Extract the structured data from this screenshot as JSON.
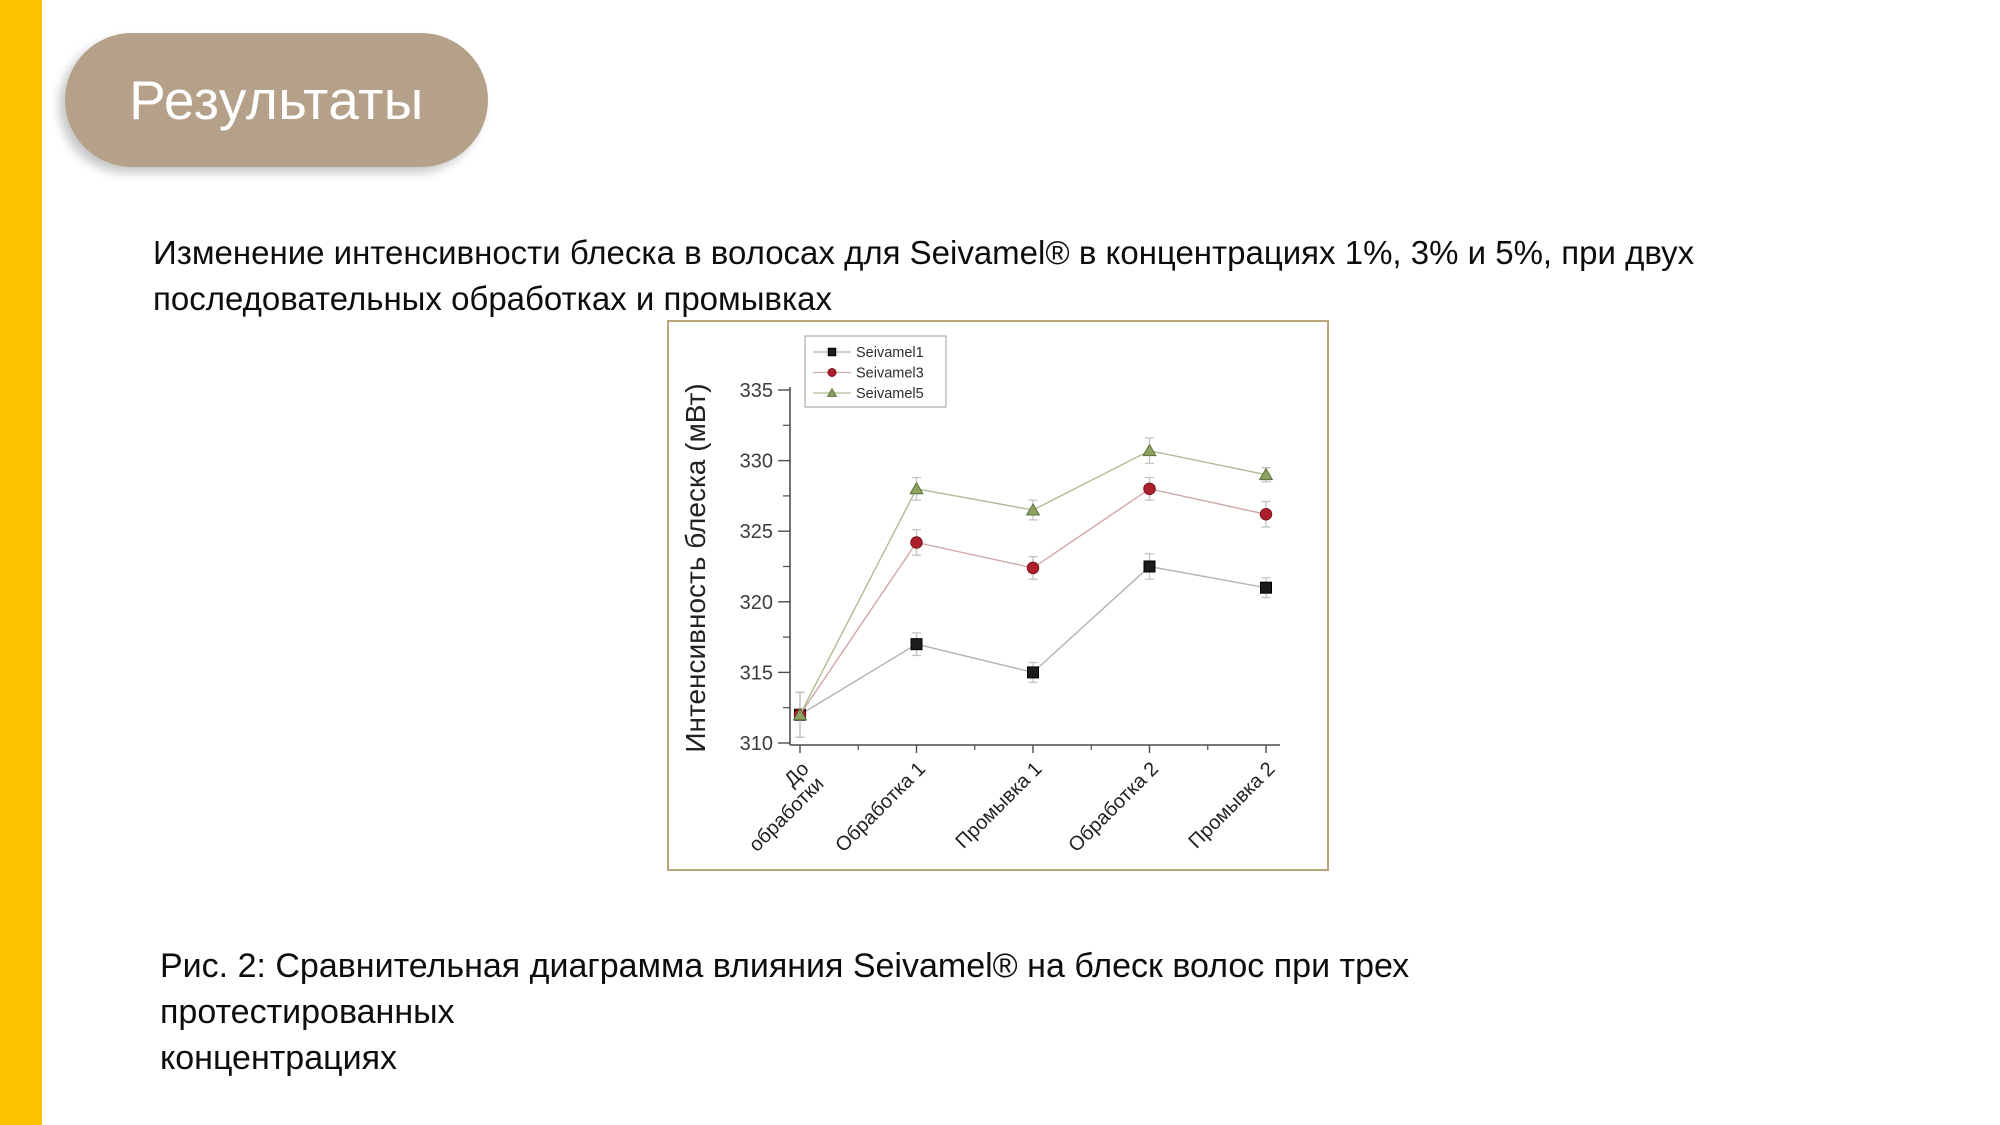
{
  "slide": {
    "title": "Результаты",
    "intro_text": "Изменение интенсивности блеска в волосах для Seivamel®  в концентрациях 1%, 3% и 5%, при двух\nпоследовательных обработках и промывках",
    "caption": "Рис. 2: Сравнительная диаграмма влияния Seivamel® на блеск волос при трех протестированных\nконцентрациях"
  },
  "colors": {
    "accent_bar": "#FFC200",
    "title_pill": "#B5A189",
    "title_text": "#FFFFFF",
    "chart_frame_border": "#B8A67A",
    "axis": "#4D4D4D",
    "tick_label": "#3C3C3C",
    "error_bar": "#C4C4C4",
    "legend_border": "#9C9C9C"
  },
  "chart_data": {
    "type": "line",
    "title": "",
    "xlabel": "",
    "ylabel": "Интенсивность блеска (мВт)",
    "ylim": [
      310,
      335
    ],
    "yticks": [
      310,
      315,
      320,
      325,
      330,
      335
    ],
    "y_minor_step": 2.5,
    "grid": false,
    "legend_position": "top-left-inside",
    "categories": [
      "До\nобработки",
      "Обработка 1",
      "Промывка 1",
      "Обработка 2",
      "Промывка 2"
    ],
    "series": [
      {
        "name": "Seivamel1",
        "marker": "square",
        "color": "#1C1C1C",
        "edge_color": "#000000",
        "line_color": "#B3B3B3",
        "values": [
          312,
          317,
          315,
          322.5,
          321
        ],
        "errors": [
          1.6,
          0.8,
          0.7,
          0.9,
          0.7
        ]
      },
      {
        "name": "Seivamel3",
        "marker": "circle",
        "color": "#AE1F2C",
        "edge_color": "#7C1420",
        "line_color": "#D0A6A6",
        "values": [
          312,
          324.2,
          322.4,
          328,
          326.2
        ],
        "errors": [
          1.6,
          0.9,
          0.8,
          0.8,
          0.9
        ]
      },
      {
        "name": "Seivamel5",
        "marker": "triangle",
        "color": "#8DA25E",
        "edge_color": "#5E7040",
        "line_color": "#ADBD94",
        "values": [
          312,
          328,
          326.5,
          330.7,
          329
        ],
        "errors": [
          1.6,
          0.8,
          0.7,
          0.9,
          0.5
        ]
      }
    ]
  }
}
